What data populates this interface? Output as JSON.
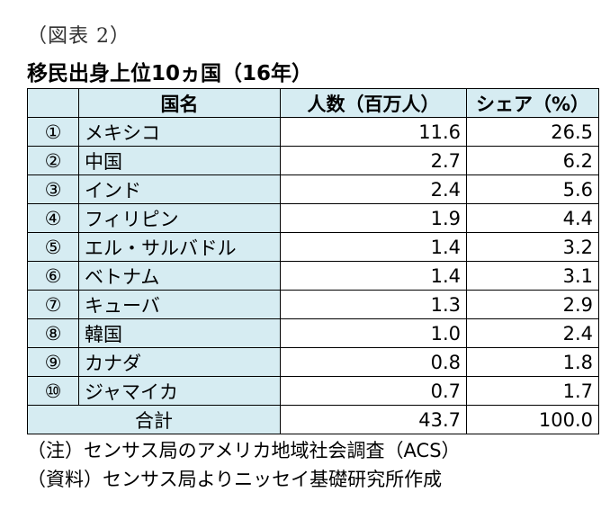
{
  "figure_label": "（図表 2）",
  "title": "移民出身上位10ヵ国（16年）",
  "table": {
    "headers": {
      "rank": "",
      "country": "国名",
      "population": "人数（百万人）",
      "share": "シェア（%）"
    },
    "rows": [
      {
        "rank": "①",
        "country": "メキシコ",
        "population": "11.6",
        "share": "26.5"
      },
      {
        "rank": "②",
        "country": "中国",
        "population": "2.7",
        "share": "6.2"
      },
      {
        "rank": "③",
        "country": "インド",
        "population": "2.4",
        "share": "5.6"
      },
      {
        "rank": "④",
        "country": "フィリピン",
        "population": "1.9",
        "share": "4.4"
      },
      {
        "rank": "⑤",
        "country": "エル・サルバドル",
        "population": "1.4",
        "share": "3.2"
      },
      {
        "rank": "⑥",
        "country": "ベトナム",
        "population": "1.4",
        "share": "3.1"
      },
      {
        "rank": "⑦",
        "country": "キューバ",
        "population": "1.3",
        "share": "2.9"
      },
      {
        "rank": "⑧",
        "country": "韓国",
        "population": "1.0",
        "share": "2.4"
      },
      {
        "rank": "⑨",
        "country": "カナダ",
        "population": "0.8",
        "share": "1.8"
      },
      {
        "rank": "⑩",
        "country": "ジャマイカ",
        "population": "0.7",
        "share": "1.7"
      }
    ],
    "total": {
      "label": "合計",
      "population": "43.7",
      "share": "100.0"
    }
  },
  "notes": [
    "（注）センサス局のアメリカ地域社会調査（ACS）",
    "（資料）センサス局よりニッセイ基礎研究所作成"
  ],
  "colors": {
    "header_fill": "#d6ecf2",
    "border": "#000000"
  }
}
